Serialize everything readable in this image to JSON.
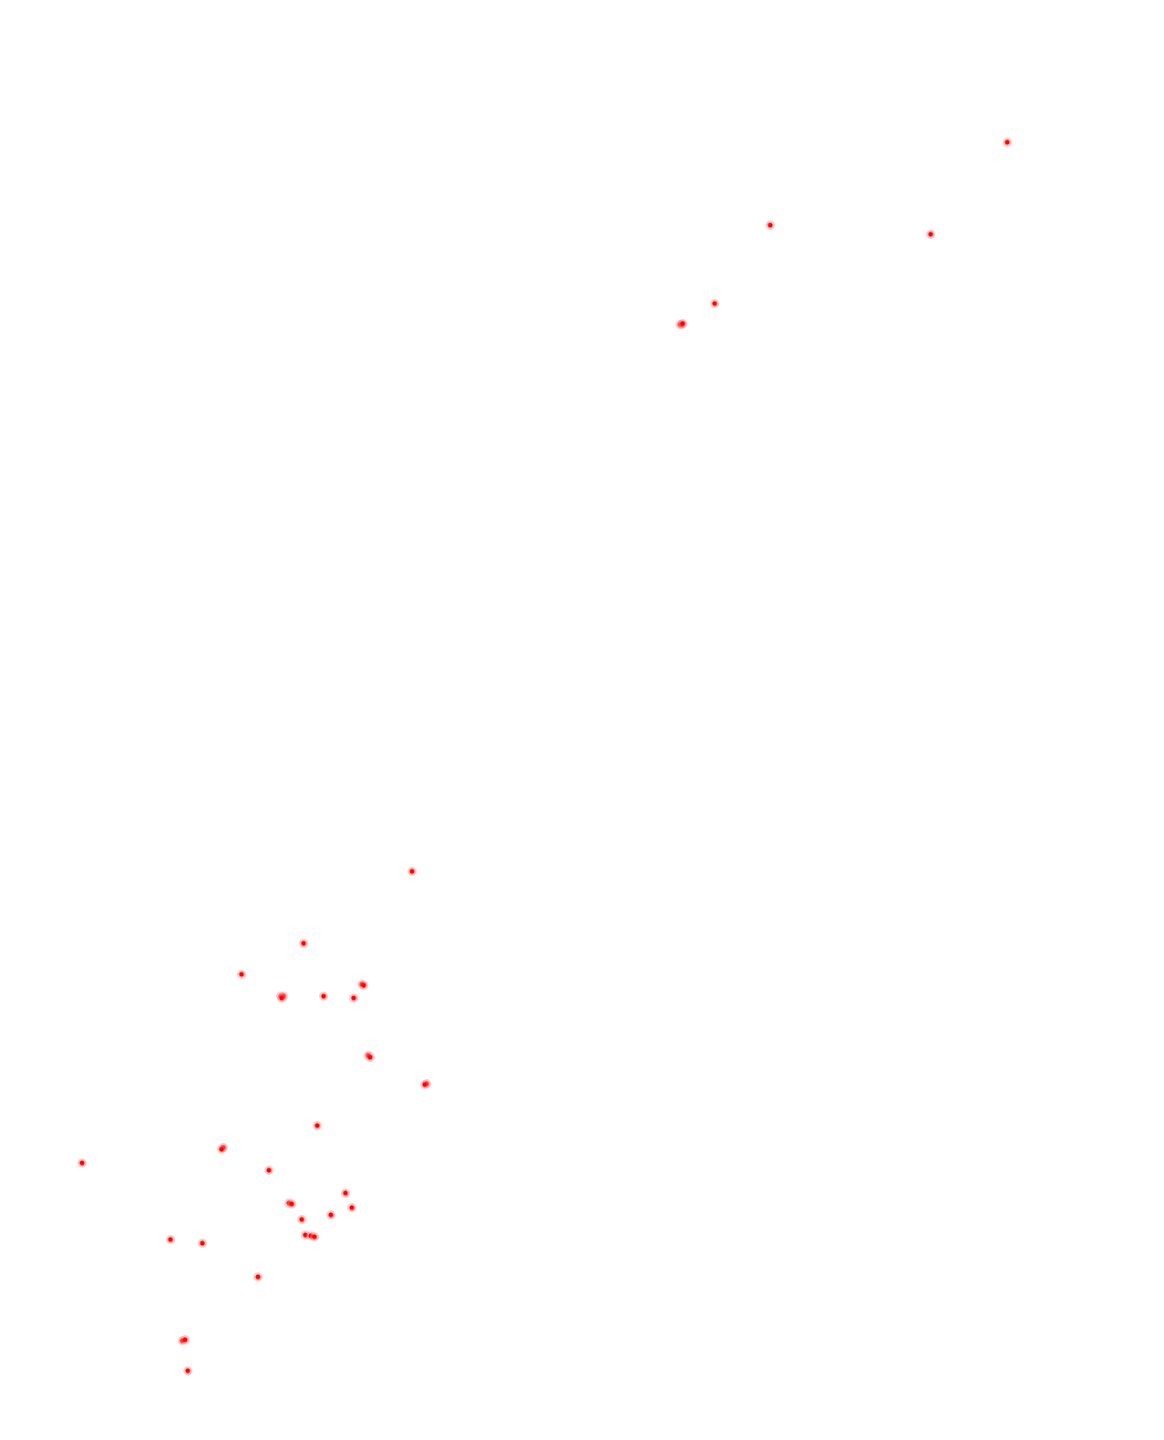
{
  "image": {
    "background_color": "#ffffff",
    "marker_color": "#ff0000",
    "marker_glow_color": "#ff8080",
    "marker_count": 41
  }
}
